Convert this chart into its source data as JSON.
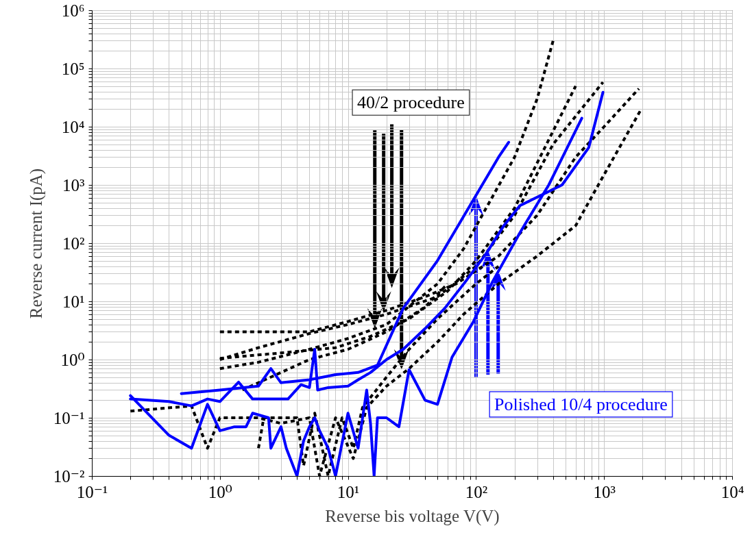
{
  "chart_data": {
    "type": "line",
    "xlabel": "Reverse bis voltage V(V)",
    "ylabel": "Reverse current I(pA)",
    "log": "xy",
    "grid": true,
    "xlim": [
      0.1,
      10000
    ],
    "ylim": [
      0.01,
      1000000
    ],
    "xticks": [
      {
        "value": 0.1,
        "label": "10⁻¹"
      },
      {
        "value": 0.2,
        "label": null
      },
      {
        "value": 0.3,
        "label": null
      },
      {
        "value": 0.4,
        "label": null
      },
      {
        "value": 0.5,
        "label": null
      },
      {
        "value": 0.6,
        "label": null
      },
      {
        "value": 0.7,
        "label": null
      },
      {
        "value": 0.8,
        "label": null
      },
      {
        "value": 0.9,
        "label": null
      },
      {
        "value": 1,
        "label": "10⁰"
      },
      {
        "value": 2,
        "label": null
      },
      {
        "value": 3,
        "label": null
      },
      {
        "value": 4,
        "label": null
      },
      {
        "value": 5,
        "label": null
      },
      {
        "value": 6,
        "label": null
      },
      {
        "value": 7,
        "label": null
      },
      {
        "value": 8,
        "label": null
      },
      {
        "value": 9,
        "label": null
      },
      {
        "value": 10,
        "label": "10¹"
      },
      {
        "value": 20,
        "label": null
      },
      {
        "value": 30,
        "label": null
      },
      {
        "value": 40,
        "label": null
      },
      {
        "value": 50,
        "label": null
      },
      {
        "value": 60,
        "label": null
      },
      {
        "value": 70,
        "label": null
      },
      {
        "value": 80,
        "label": null
      },
      {
        "value": 90,
        "label": null
      },
      {
        "value": 100,
        "label": "10²"
      },
      {
        "value": 200,
        "label": null
      },
      {
        "value": 300,
        "label": null
      },
      {
        "value": 400,
        "label": null
      },
      {
        "value": 500,
        "label": null
      },
      {
        "value": 600,
        "label": null
      },
      {
        "value": 700,
        "label": null
      },
      {
        "value": 800,
        "label": null
      },
      {
        "value": 900,
        "label": null
      },
      {
        "value": 1000,
        "label": "10³"
      },
      {
        "value": 2000,
        "label": null
      },
      {
        "value": 3000,
        "label": null
      },
      {
        "value": 4000,
        "label": null
      },
      {
        "value": 5000,
        "label": null
      },
      {
        "value": 6000,
        "label": null
      },
      {
        "value": 7000,
        "label": null
      },
      {
        "value": 8000,
        "label": null
      },
      {
        "value": 9000,
        "label": null
      },
      {
        "value": 10000,
        "label": "10⁴"
      }
    ],
    "yticks": [
      {
        "value": 0.01,
        "label": "10⁻²"
      },
      {
        "value": 0.02,
        "label": null
      },
      {
        "value": 0.03,
        "label": null
      },
      {
        "value": 0.04,
        "label": null
      },
      {
        "value": 0.05,
        "label": null
      },
      {
        "value": 0.06,
        "label": null
      },
      {
        "value": 0.07,
        "label": null
      },
      {
        "value": 0.08,
        "label": null
      },
      {
        "value": 0.09,
        "label": null
      },
      {
        "value": 0.1,
        "label": "10⁻¹"
      },
      {
        "value": 0.2,
        "label": null
      },
      {
        "value": 0.3,
        "label": null
      },
      {
        "value": 0.4,
        "label": null
      },
      {
        "value": 0.5,
        "label": null
      },
      {
        "value": 0.6,
        "label": null
      },
      {
        "value": 0.7,
        "label": null
      },
      {
        "value": 0.8,
        "label": null
      },
      {
        "value": 0.9,
        "label": null
      },
      {
        "value": 1,
        "label": "10⁰"
      },
      {
        "value": 2,
        "label": null
      },
      {
        "value": 3,
        "label": null
      },
      {
        "value": 4,
        "label": null
      },
      {
        "value": 5,
        "label": null
      },
      {
        "value": 6,
        "label": null
      },
      {
        "value": 7,
        "label": null
      },
      {
        "value": 8,
        "label": null
      },
      {
        "value": 9,
        "label": null
      },
      {
        "value": 10,
        "label": "10¹"
      },
      {
        "value": 20,
        "label": null
      },
      {
        "value": 30,
        "label": null
      },
      {
        "value": 40,
        "label": null
      },
      {
        "value": 50,
        "label": null
      },
      {
        "value": 60,
        "label": null
      },
      {
        "value": 70,
        "label": null
      },
      {
        "value": 80,
        "label": null
      },
      {
        "value": 90,
        "label": null
      },
      {
        "value": 100,
        "label": "10²"
      },
      {
        "value": 200,
        "label": null
      },
      {
        "value": 300,
        "label": null
      },
      {
        "value": 400,
        "label": null
      },
      {
        "value": 500,
        "label": null
      },
      {
        "value": 600,
        "label": null
      },
      {
        "value": 700,
        "label": null
      },
      {
        "value": 800,
        "label": null
      },
      {
        "value": 900,
        "label": null
      },
      {
        "value": 1000,
        "label": "10³"
      },
      {
        "value": 2000,
        "label": null
      },
      {
        "value": 3000,
        "label": null
      },
      {
        "value": 4000,
        "label": null
      },
      {
        "value": 5000,
        "label": null
      },
      {
        "value": 6000,
        "label": null
      },
      {
        "value": 7000,
        "label": null
      },
      {
        "value": 8000,
        "label": null
      },
      {
        "value": 9000,
        "label": null
      },
      {
        "value": 10000,
        "label": "10⁴"
      },
      {
        "value": 20000,
        "label": null
      },
      {
        "value": 30000,
        "label": null
      },
      {
        "value": 40000,
        "label": null
      },
      {
        "value": 50000,
        "label": null
      },
      {
        "value": 60000,
        "label": null
      },
      {
        "value": 70000,
        "label": null
      },
      {
        "value": 80000,
        "label": null
      },
      {
        "value": 90000,
        "label": null
      },
      {
        "value": 100000,
        "label": "10⁵"
      },
      {
        "value": 200000,
        "label": null
      },
      {
        "value": 300000,
        "label": null
      },
      {
        "value": 400000,
        "label": null
      },
      {
        "value": 500000,
        "label": null
      },
      {
        "value": 600000,
        "label": null
      },
      {
        "value": 700000,
        "label": null
      },
      {
        "value": 800000,
        "label": null
      },
      {
        "value": 900000,
        "label": null
      },
      {
        "value": 1000000,
        "label": "10⁶"
      }
    ],
    "series": [
      {
        "color": "#000000",
        "line_style": "dashed",
        "x": [
          1,
          5,
          10,
          20,
          40,
          70,
          150,
          300,
          600,
          1000,
          1870
        ],
        "values": [
          3,
          3,
          4.5,
          7,
          12,
          20,
          60,
          300,
          3000,
          10000,
          45000
        ]
      },
      {
        "color": "#000000",
        "line_style": "dashed",
        "x": [
          1,
          2,
          5,
          10,
          20,
          50,
          100,
          200,
          400,
          980
        ],
        "values": [
          1,
          1.6,
          2.8,
          4,
          6,
          12,
          40,
          300,
          5000,
          58000
        ]
      },
      {
        "color": "#000000",
        "line_style": "dashed",
        "x": [
          1,
          3,
          8,
          15,
          30,
          60,
          100,
          200,
          600
        ],
        "values": [
          1.05,
          1.3,
          1.6,
          2.5,
          5,
          15,
          50,
          400,
          50000
        ]
      },
      {
        "color": "#000000",
        "line_style": "dashed",
        "x": [
          1,
          2,
          5,
          10,
          20,
          50,
          80,
          120,
          200,
          300,
          400
        ],
        "values": [
          0.7,
          0.9,
          1.5,
          2.3,
          4,
          20,
          80,
          400,
          3000,
          30000,
          300000
        ]
      },
      {
        "color": "#000000",
        "line_style": "dashed",
        "x": [
          1.5,
          3,
          5,
          10,
          20,
          40,
          60
        ],
        "values": [
          0.3,
          0.6,
          1,
          1.5,
          3,
          8,
          20
        ]
      },
      {
        "color": "#000000",
        "line_style": "dashed",
        "x": [
          0.2,
          0.6,
          0.8,
          1,
          2,
          3,
          5,
          6,
          8,
          11,
          14,
          20,
          30,
          50,
          80,
          150,
          300,
          600,
          1000,
          1950
        ],
        "values": [
          0.13,
          0.16,
          0.03,
          0.1,
          0.1,
          0.08,
          0.1,
          0.01,
          0.1,
          0.02,
          0.15,
          0.35,
          0.7,
          2,
          6,
          20,
          60,
          200,
          1500,
          20000
        ]
      },
      {
        "color": "#000000",
        "line_style": "dashed",
        "x": [
          2,
          2.2,
          4,
          4.5,
          5.5,
          7,
          9,
          11,
          13,
          20,
          30,
          50,
          100,
          150
        ],
        "values": [
          0.03,
          0.1,
          0.1,
          0.015,
          0.12,
          0.01,
          0.1,
          0.03,
          0.15,
          0.5,
          1.5,
          5,
          20,
          40
        ]
      },
      {
        "color": "#0000ff",
        "line_style": "solid",
        "x": [
          0.5,
          1,
          2,
          2.5,
          3,
          5,
          8,
          12,
          17,
          27,
          50,
          100,
          150,
          180
        ],
        "values": [
          0.26,
          0.3,
          0.35,
          0.7,
          0.4,
          0.45,
          0.55,
          0.6,
          0.8,
          7.6,
          50,
          660,
          3000,
          5400
        ]
      },
      {
        "color": "#0000ff",
        "line_style": "solid",
        "x": [
          0.2,
          0.4,
          0.6,
          0.8,
          1,
          1.4,
          1.8,
          2.4,
          3.4,
          4.3,
          5,
          5.5,
          5.8,
          7,
          10,
          12,
          15,
          20,
          27,
          40,
          57,
          83,
          120,
          165,
          220,
          470,
          760,
          980
        ],
        "values": [
          0.21,
          0.19,
          0.16,
          0.21,
          0.19,
          0.41,
          0.21,
          0.21,
          0.21,
          0.37,
          0.33,
          1.5,
          0.3,
          0.33,
          0.35,
          0.45,
          0.6,
          1,
          1.5,
          3.4,
          7.6,
          22,
          66,
          200,
          440,
          1000,
          4400,
          39000
        ]
      },
      {
        "color": "#0000ff",
        "line_style": "solid",
        "x": [
          0.2,
          0.4,
          0.6,
          0.8,
          1,
          1.3,
          1.6,
          1.8,
          2.4,
          2.5,
          3,
          3.3,
          4,
          4.5,
          5,
          5.5,
          6,
          7,
          8,
          10,
          12,
          14,
          15,
          16,
          17,
          20,
          25,
          30,
          40,
          50,
          65,
          95,
          135,
          220,
          370,
          670
        ],
        "values": [
          0.24,
          0.05,
          0.03,
          0.17,
          0.06,
          0.07,
          0.07,
          0.12,
          0.1,
          0.03,
          0.07,
          0.03,
          0.01,
          0.04,
          0.07,
          0.1,
          0.06,
          0.03,
          0.01,
          0.12,
          0.03,
          0.3,
          0.08,
          0.01,
          0.1,
          0.1,
          0.07,
          0.67,
          0.2,
          0.17,
          1.1,
          4.4,
          22,
          150,
          1000,
          14000
        ]
      }
    ],
    "annotations": [
      "40/2 procedure",
      "Polished 10/4 procedure"
    ]
  }
}
